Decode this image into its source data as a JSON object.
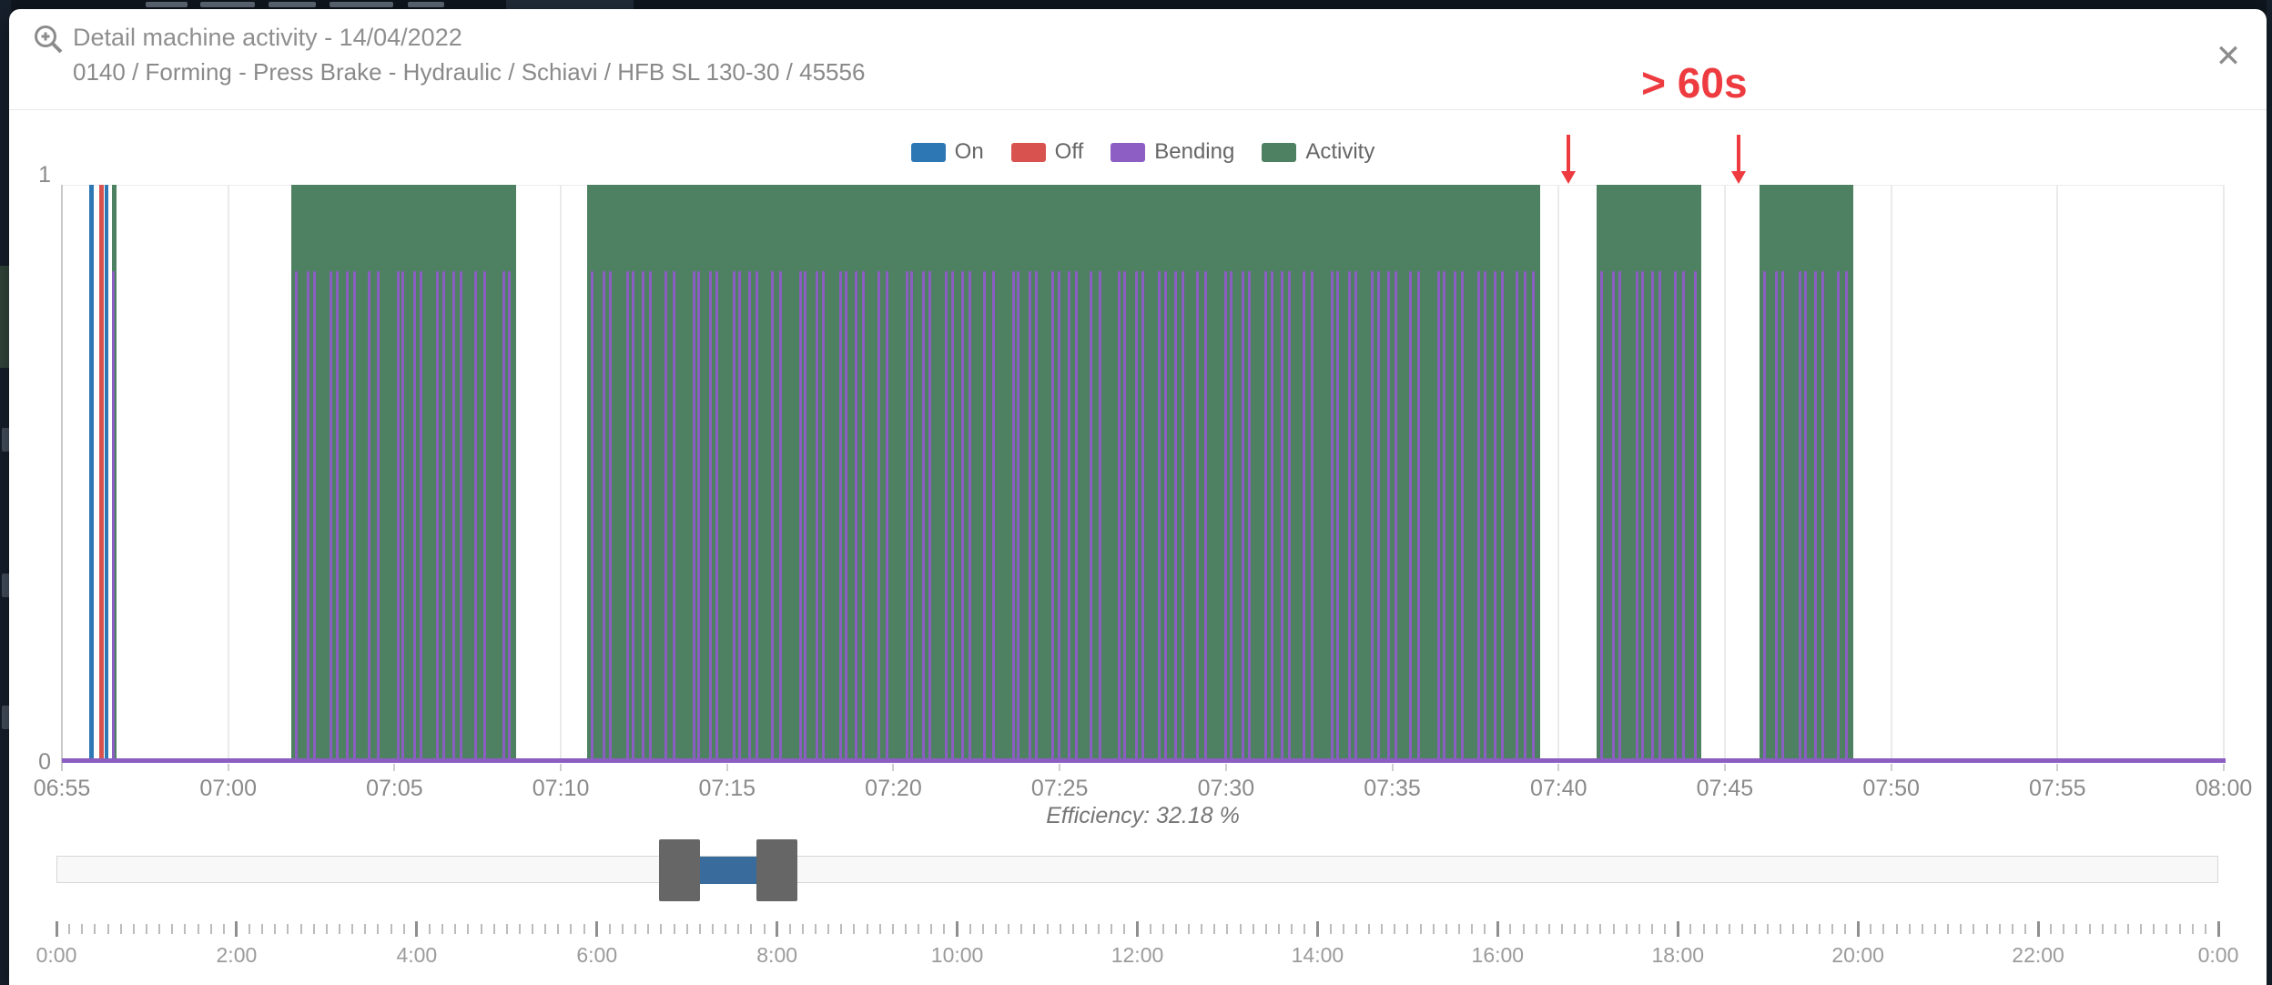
{
  "header": {
    "title": "Detail machine activity - 14/04/2022",
    "subtitle": "0140 / Forming - Press Brake - Hydraulic / Schiavi / HFB SL 130-30 / 45556",
    "close_glyph": "✕"
  },
  "legend": [
    {
      "label": "On",
      "color": "#2e77b5"
    },
    {
      "label": "Off",
      "color": "#d8534f"
    },
    {
      "label": "Bending",
      "color": "#8d5ec4"
    },
    {
      "label": "Activity",
      "color": "#4e8161"
    }
  ],
  "annotation": {
    "text": "> 60s",
    "color": "#ed3b40",
    "arrow_minutes": [
      45.3,
      50.4
    ]
  },
  "chart_data": {
    "type": "area",
    "title": "Detail machine activity - 14/04/2022",
    "x_axis": "time of day (05-minute ticks)",
    "x_ticks": [
      "06:55",
      "07:00",
      "07:05",
      "07:10",
      "07:15",
      "07:20",
      "07:25",
      "07:30",
      "07:35",
      "07:40",
      "07:45",
      "07:50",
      "07:55",
      "08:00"
    ],
    "x_tick_step_minutes": 5,
    "x_span_minutes": 65,
    "y_ticks": [
      "0",
      "1"
    ],
    "ylim": [
      0,
      1
    ],
    "grid": true,
    "legend_position": "top-center",
    "series": {
      "activity_segments_min": [
        [
          1.5,
          1.64
        ],
        [
          6.9,
          13.65
        ],
        [
          15.8,
          44.45
        ],
        [
          46.15,
          49.3
        ],
        [
          51.05,
          53.85
        ]
      ],
      "on_events_min": [
        [
          0.82,
          0.96
        ],
        [
          1.28,
          1.4
        ]
      ],
      "off_events_min": [
        [
          1.12,
          1.25
        ]
      ],
      "bending_height_fraction": 0.85,
      "bending_marks_min": [
        1.54,
        7.05,
        7.4,
        7.6,
        8.1,
        8.28,
        8.58,
        8.8,
        9.25,
        9.5,
        10.1,
        10.25,
        10.6,
        10.8,
        11.3,
        11.48,
        11.78,
        12.0,
        12.45,
        12.7,
        13.3,
        13.45,
        15.95,
        16.3,
        16.5,
        17.0,
        17.18,
        17.48,
        17.7,
        18.15,
        18.4,
        19.0,
        19.15,
        19.5,
        19.7,
        20.2,
        20.38,
        20.68,
        20.9,
        21.35,
        21.6,
        22.2,
        22.35,
        22.7,
        22.9,
        23.4,
        23.58,
        23.88,
        24.1,
        24.55,
        24.8,
        25.4,
        25.55,
        25.9,
        26.1,
        26.6,
        26.78,
        27.08,
        27.3,
        27.75,
        28.0,
        28.6,
        28.75,
        29.1,
        29.3,
        29.8,
        29.98,
        30.28,
        30.5,
        30.95,
        31.2,
        31.8,
        31.95,
        32.3,
        32.5,
        33.0,
        33.18,
        33.48,
        33.7,
        34.15,
        34.4,
        35.0,
        35.15,
        35.5,
        35.7,
        36.2,
        36.38,
        36.68,
        36.9,
        37.35,
        37.6,
        38.2,
        38.35,
        38.7,
        38.9,
        39.4,
        39.58,
        39.88,
        40.1,
        40.55,
        40.8,
        41.4,
        41.55,
        41.9,
        42.1,
        42.6,
        42.78,
        43.08,
        43.3,
        43.75,
        44.0,
        44.25,
        46.3,
        46.65,
        46.85,
        47.35,
        47.53,
        47.83,
        48.05,
        48.5,
        48.75,
        49.1,
        51.2,
        51.55,
        51.75,
        52.25,
        52.43,
        52.73,
        52.95,
        53.4,
        53.65
      ]
    },
    "efficiency_label": "Efficiency: 32.18 %"
  },
  "slider": {
    "total_hours": 24,
    "range_start_hours": 6.917,
    "range_end_hours": 8.0,
    "range_color": "#3a6b9d",
    "handle_color": "#666666"
  },
  "ruler": {
    "labels": [
      "0:00",
      "2:00",
      "4:00",
      "6:00",
      "8:00",
      "10:00",
      "12:00",
      "14:00",
      "16:00",
      "18:00",
      "20:00",
      "22:00",
      "0:00"
    ],
    "major_every_hours": 2,
    "minor_subdivisions": 14
  },
  "colors": {
    "baseline": "#8b5ec2",
    "bending": "#8b5ec2",
    "activity": "#4e8161",
    "on": "#2e77b5",
    "off": "#d8534f"
  }
}
